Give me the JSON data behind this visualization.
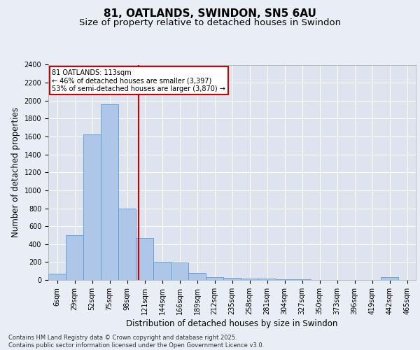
{
  "title_line1": "81, OATLANDS, SWINDON, SN5 6AU",
  "title_line2": "Size of property relative to detached houses in Swindon",
  "xlabel": "Distribution of detached houses by size in Swindon",
  "ylabel": "Number of detached properties",
  "bar_labels": [
    "6sqm",
    "29sqm",
    "52sqm",
    "75sqm",
    "98sqm",
    "121sqm",
    "144sqm",
    "166sqm",
    "189sqm",
    "212sqm",
    "235sqm",
    "258sqm",
    "281sqm",
    "304sqm",
    "327sqm",
    "350sqm",
    "373sqm",
    "396sqm",
    "419sqm",
    "442sqm",
    "465sqm"
  ],
  "bar_values": [
    70,
    500,
    1620,
    1960,
    800,
    470,
    200,
    195,
    75,
    35,
    22,
    15,
    12,
    7,
    5,
    3,
    2,
    1,
    0,
    28,
    0
  ],
  "bar_color": "#aec6e8",
  "bar_edge_color": "#5b9bd5",
  "background_color": "#e9edf5",
  "plot_bg_color": "#dde3ef",
  "grid_color": "#ffffff",
  "vline_x_index": 4.65,
  "vline_color": "#cc0000",
  "annotation_text": "81 OATLANDS: 113sqm\n← 46% of detached houses are smaller (3,397)\n53% of semi-detached houses are larger (3,870) →",
  "annotation_box_color": "#cc0000",
  "ylim": [
    0,
    2400
  ],
  "yticks": [
    0,
    200,
    400,
    600,
    800,
    1000,
    1200,
    1400,
    1600,
    1800,
    2000,
    2200,
    2400
  ],
  "footnote": "Contains HM Land Registry data © Crown copyright and database right 2025.\nContains public sector information licensed under the Open Government Licence v3.0.",
  "title_fontsize": 11,
  "subtitle_fontsize": 9.5,
  "tick_fontsize": 7,
  "label_fontsize": 8.5,
  "footnote_fontsize": 6
}
